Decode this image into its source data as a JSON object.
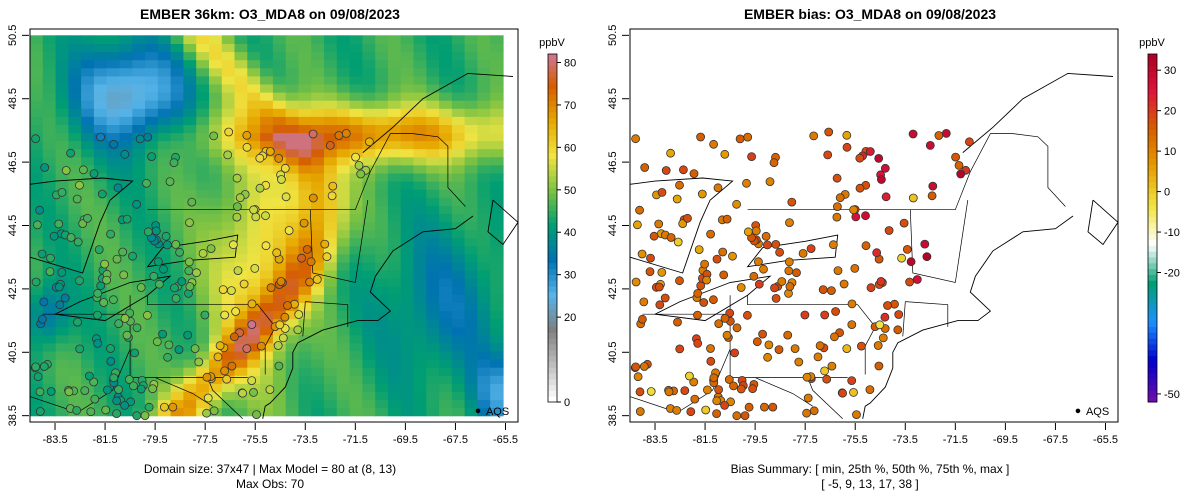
{
  "left": {
    "title": "EMBER 36km: O3_MDA8 on 09/08/2023",
    "colorbar_label": "ppbV",
    "colorbar_ticks": [
      "80",
      "70",
      "60",
      "50",
      "40",
      "30",
      "20",
      "0"
    ],
    "legend_label": "AQS",
    "footer_line1": "Domain size: 37x47 | Max Model = 80 at (8, 13)",
    "footer_line2": "Max Obs: 70"
  },
  "right": {
    "title": "EMBER bias: O3_MDA8 on 09/08/2023",
    "colorbar_label": "ppbV",
    "colorbar_ticks": [
      "30",
      "20",
      "10",
      "0",
      "-10",
      "-20",
      "-50"
    ],
    "legend_label": "AQS",
    "footer_line1": "Bias Summary: [ min, 25th %, 50th %, 75th %, max ]",
    "footer_line2": "[ -5,   9,   13,   17,   38 ]"
  },
  "axes": {
    "x_ticks": [
      "-83.5",
      "-81.5",
      "-79.5",
      "-77.5",
      "-75.5",
      "-73.5",
      "-71.5",
      "-69.5",
      "-67.5",
      "-65.5"
    ],
    "y_ticks": [
      "38.5",
      "40.5",
      "42.5",
      "44.5",
      "46.5",
      "48.5",
      "50.5"
    ],
    "xlim": [
      -84.5,
      -65.0
    ],
    "ylim": [
      38.3,
      50.7
    ]
  },
  "colors": {
    "model_scale": [
      "#ffffff",
      "#bdbdbd",
      "#808080",
      "#56b4e9",
      "#0072b2",
      "#009e73",
      "#7dc242",
      "#f0e442",
      "#e6a800",
      "#d55e00",
      "#cc79a7"
    ],
    "bias_scale": [
      "#6a0dad",
      "#0000cd",
      "#1e90ff",
      "#009e73",
      "#ffffff",
      "#f0e442",
      "#e69f00",
      "#d55e00",
      "#dc143c",
      "#a50021"
    ]
  }
}
